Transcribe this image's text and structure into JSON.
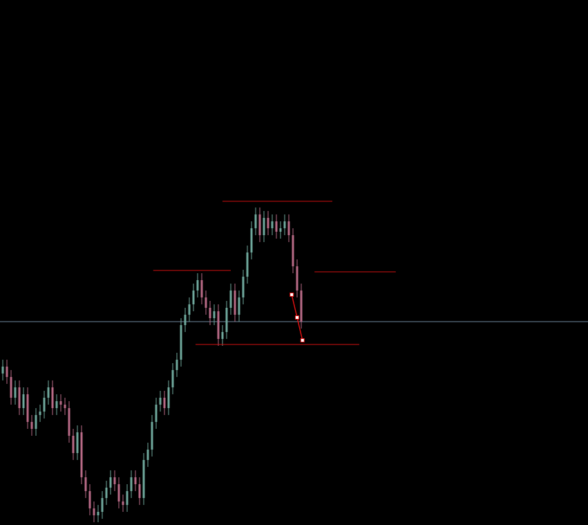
{
  "chart_data": {
    "type": "candlestick",
    "xlim": [
      -0.667,
      141.17
    ],
    "ylim": [
      0,
      759
    ],
    "up_color": "#6fa89c",
    "down_color": "#b86a86",
    "open": [
      219,
      229,
      214,
      184,
      199,
      169,
      189,
      149,
      139,
      159,
      164,
      184,
      199,
      169,
      179,
      174,
      169,
      129,
      104,
      134,
      69,
      49,
      24,
      14,
      19,
      39,
      54,
      69,
      59,
      34,
      29,
      49,
      69,
      59,
      39,
      94,
      109,
      149,
      174,
      184,
      169,
      199,
      224,
      239,
      289,
      304,
      319,
      339,
      354,
      329,
      314,
      299,
      309,
      269,
      279,
      314,
      339,
      304,
      329,
      359,
      394,
      429,
      449,
      419,
      444,
      429,
      439,
      424,
      429,
      439,
      419,
      374,
      339
    ],
    "high": [
      239,
      239,
      224,
      209,
      209,
      199,
      199,
      159,
      169,
      174,
      194,
      209,
      209,
      189,
      189,
      184,
      179,
      139,
      144,
      144,
      79,
      59,
      34,
      29,
      49,
      64,
      79,
      79,
      69,
      44,
      59,
      79,
      79,
      69,
      104,
      119,
      159,
      184,
      194,
      194,
      209,
      234,
      249,
      299,
      314,
      329,
      349,
      364,
      364,
      339,
      324,
      319,
      319,
      289,
      324,
      349,
      349,
      339,
      369,
      404,
      439,
      459,
      459,
      454,
      454,
      449,
      449,
      439,
      449,
      449,
      429,
      384,
      349
    ],
    "low": [
      209,
      204,
      174,
      174,
      159,
      159,
      139,
      129,
      129,
      149,
      154,
      174,
      159,
      159,
      164,
      159,
      119,
      94,
      94,
      59,
      39,
      14,
      4,
      4,
      9,
      29,
      44,
      49,
      24,
      19,
      19,
      39,
      49,
      29,
      29,
      84,
      99,
      139,
      164,
      159,
      159,
      189,
      214,
      229,
      279,
      294,
      309,
      329,
      319,
      304,
      289,
      289,
      259,
      259,
      269,
      304,
      294,
      294,
      319,
      349,
      384,
      419,
      409,
      409,
      419,
      419,
      414,
      414,
      419,
      409,
      364,
      329,
      284
    ],
    "close": [
      229,
      214,
      184,
      199,
      169,
      189,
      149,
      139,
      159,
      164,
      184,
      199,
      169,
      179,
      174,
      169,
      129,
      104,
      134,
      69,
      49,
      24,
      14,
      19,
      39,
      54,
      69,
      59,
      34,
      29,
      49,
      69,
      59,
      39,
      94,
      109,
      149,
      174,
      184,
      169,
      199,
      224,
      239,
      289,
      304,
      319,
      339,
      354,
      329,
      314,
      299,
      309,
      269,
      279,
      314,
      339,
      304,
      329,
      359,
      394,
      429,
      449,
      419,
      444,
      429,
      439,
      424,
      429,
      439,
      419,
      374,
      339,
      294
    ],
    "levels": [
      {
        "value": 468,
        "x": [
          53,
          79.5
        ],
        "color": "#d01010"
      },
      {
        "value": 368,
        "x": [
          36.3,
          55
        ],
        "color": "#d01010"
      },
      {
        "value": 366,
        "x": [
          75.2,
          94.8
        ],
        "color": "#d01010"
      },
      {
        "value": 261,
        "x": [
          46.5,
          86
        ],
        "color": "#d01010"
      }
    ],
    "hline": {
      "value": 294,
      "color": "#6f8aa0"
    },
    "zigzag": {
      "x": [
        69.7,
        71,
        72.3
      ],
      "values": [
        333,
        300,
        267
      ],
      "color": "#e01010"
    }
  }
}
